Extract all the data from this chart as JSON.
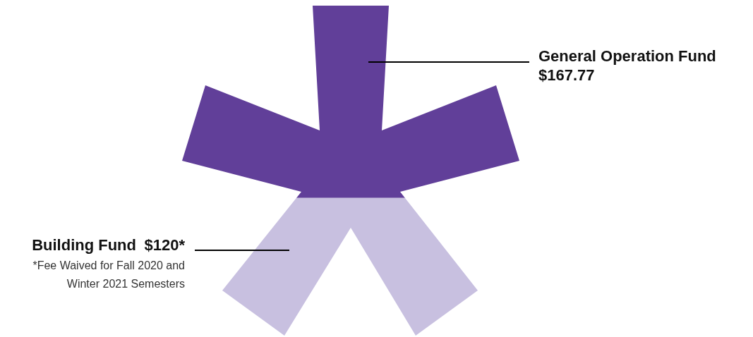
{
  "chart_data": {
    "type": "other",
    "categories": [
      "General Operation Fund",
      "Building Fund"
    ],
    "values": [
      167.77,
      120
    ],
    "value_labels": [
      "$167.77",
      "$120*"
    ],
    "colors": [
      "#613f99",
      "#c8c0e0"
    ],
    "annotations": [
      "*Fee Waived for Fall 2020 and Winter 2021 Semesters"
    ]
  }
}
